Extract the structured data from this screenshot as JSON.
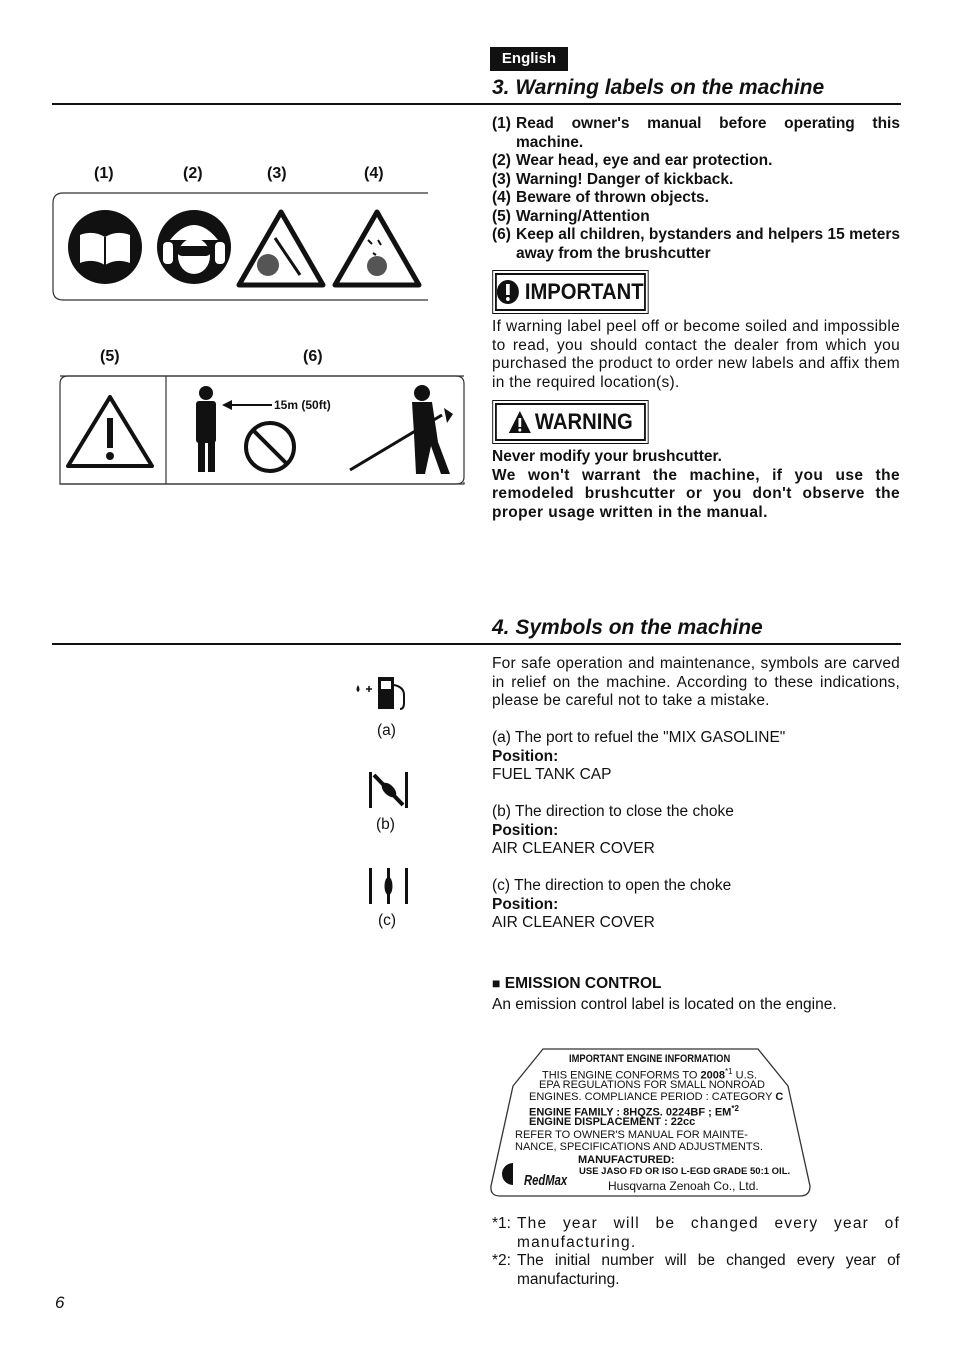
{
  "header": {
    "language": "English"
  },
  "section3": {
    "title": "3. Warning labels on the machine",
    "label_numbers": [
      "(1)",
      "(2)",
      "(3)",
      "(4)",
      "(5)",
      "(6)"
    ],
    "distance_label": "15m (50ft)",
    "items": [
      {
        "num": "(1)",
        "text": "Read owner's manual before operating this machine."
      },
      {
        "num": "(2)",
        "text": "Wear head, eye and ear protection."
      },
      {
        "num": "(3)",
        "text": "Warning! Danger of kickback."
      },
      {
        "num": "(4)",
        "text": "Beware of thrown objects."
      },
      {
        "num": "(5)",
        "text": "Warning/Attention"
      },
      {
        "num": "(6)",
        "text": "Keep all children, bystanders and helpers 15 meters away from the brushcutter"
      }
    ],
    "important": {
      "badge": "IMPORTANT",
      "text": "If warning label peel off or become soiled and impossible to read, you should contact the dealer from which you purchased the product to order new labels and affix them in the required location(s)."
    },
    "warning": {
      "badge": "WARNING",
      "lines": [
        "Never modify your brushcutter.",
        "We won't warrant the machine, if you use the remodeled brushcutter or you don't observe the proper usage written in the manual."
      ]
    }
  },
  "section4": {
    "title": "4. Symbols on the machine",
    "intro": "For safe operation and maintenance, symbols are carved in relief on the machine. According to these indications, please be careful not to take a mistake.",
    "symbols": [
      {
        "label": "(a)",
        "description": "(a) The port to refuel the \"MIX GASOLINE\"",
        "position_label": "Position:",
        "position": "FUEL TANK CAP"
      },
      {
        "label": "(b)",
        "description": "(b) The direction to close the choke",
        "position_label": "Position:",
        "position": "AIR CLEANER COVER"
      },
      {
        "label": "(c)",
        "description": "(c) The direction to open the choke",
        "position_label": "Position:",
        "position": "AIR CLEANER COVER"
      }
    ],
    "emission": {
      "heading": "EMISSION CONTROL",
      "text": "An emission control label is located on the engine.",
      "label": {
        "title": "IMPORTANT ENGINE INFORMATION",
        "conforms": "THIS ENGINE CONFORMS TO",
        "year": "2008",
        "year_note": "*1",
        "conforms_tail": "U.S.",
        "epa": "EPA REGULATIONS FOR SMALL NONROAD",
        "compliance": "ENGINES. COMPLIANCE PERIOD : CATEGORY",
        "category": "C",
        "family": "ENGINE FAMILY : 8HQZS. 0224BF ; EM",
        "family_note": "*2",
        "displacement": "ENGINE DISPLACEMENT : 22cc",
        "refer1": "REFER TO OWNER'S MANUAL FOR MAINTE-",
        "refer2": "NANCE, SPECIFICATIONS AND ADJUSTMENTS.",
        "manufactured": "MANUFACTURED:",
        "oil": "USE JASO FD OR ISO L-EGD GRADE 50:1 OIL.",
        "brand": "RedMax",
        "company": "Husqvarna Zenoah Co., Ltd."
      }
    },
    "footnotes": [
      {
        "mark": "*1:",
        "text": "The year will be changed every year of manufacturing."
      },
      {
        "mark": "*2:",
        "text": "The initial number will be changed every year of manufacturing."
      }
    ]
  },
  "page_number": "6"
}
